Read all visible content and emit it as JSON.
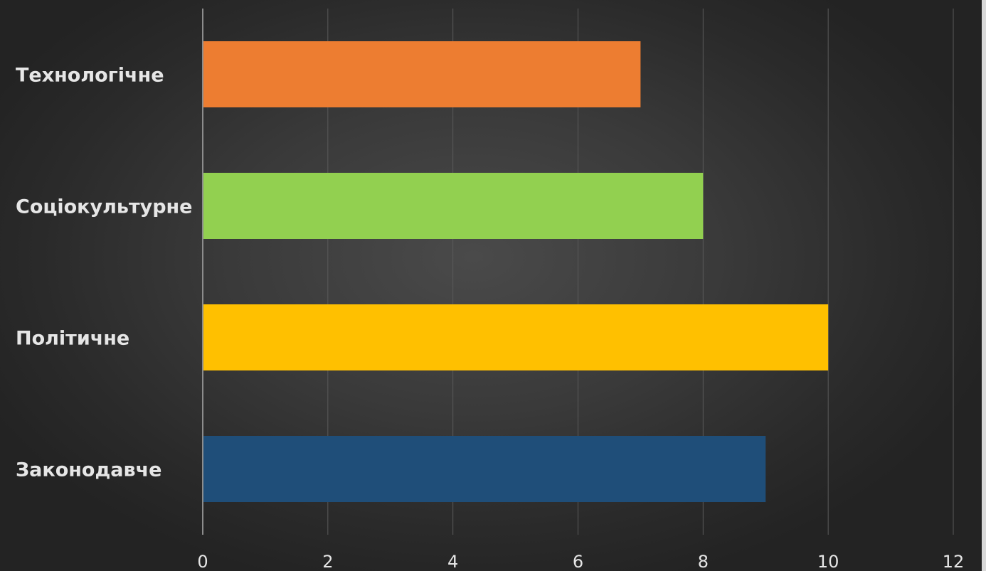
{
  "chart_data": {
    "type": "bar",
    "orientation": "horizontal",
    "categories": [
      "Законодавче",
      "Політичне",
      "Соціокультурне",
      "Технологічне"
    ],
    "values": [
      9,
      10,
      8,
      7
    ],
    "colors": [
      "#1f4e79",
      "#ffc000",
      "#92d050",
      "#ed7d31"
    ],
    "xlim": [
      0,
      12
    ],
    "xticks": [
      "0",
      "2",
      "4",
      "6",
      "8",
      "10",
      "12"
    ],
    "grid": true,
    "title": "",
    "xlabel": "",
    "ylabel": ""
  }
}
